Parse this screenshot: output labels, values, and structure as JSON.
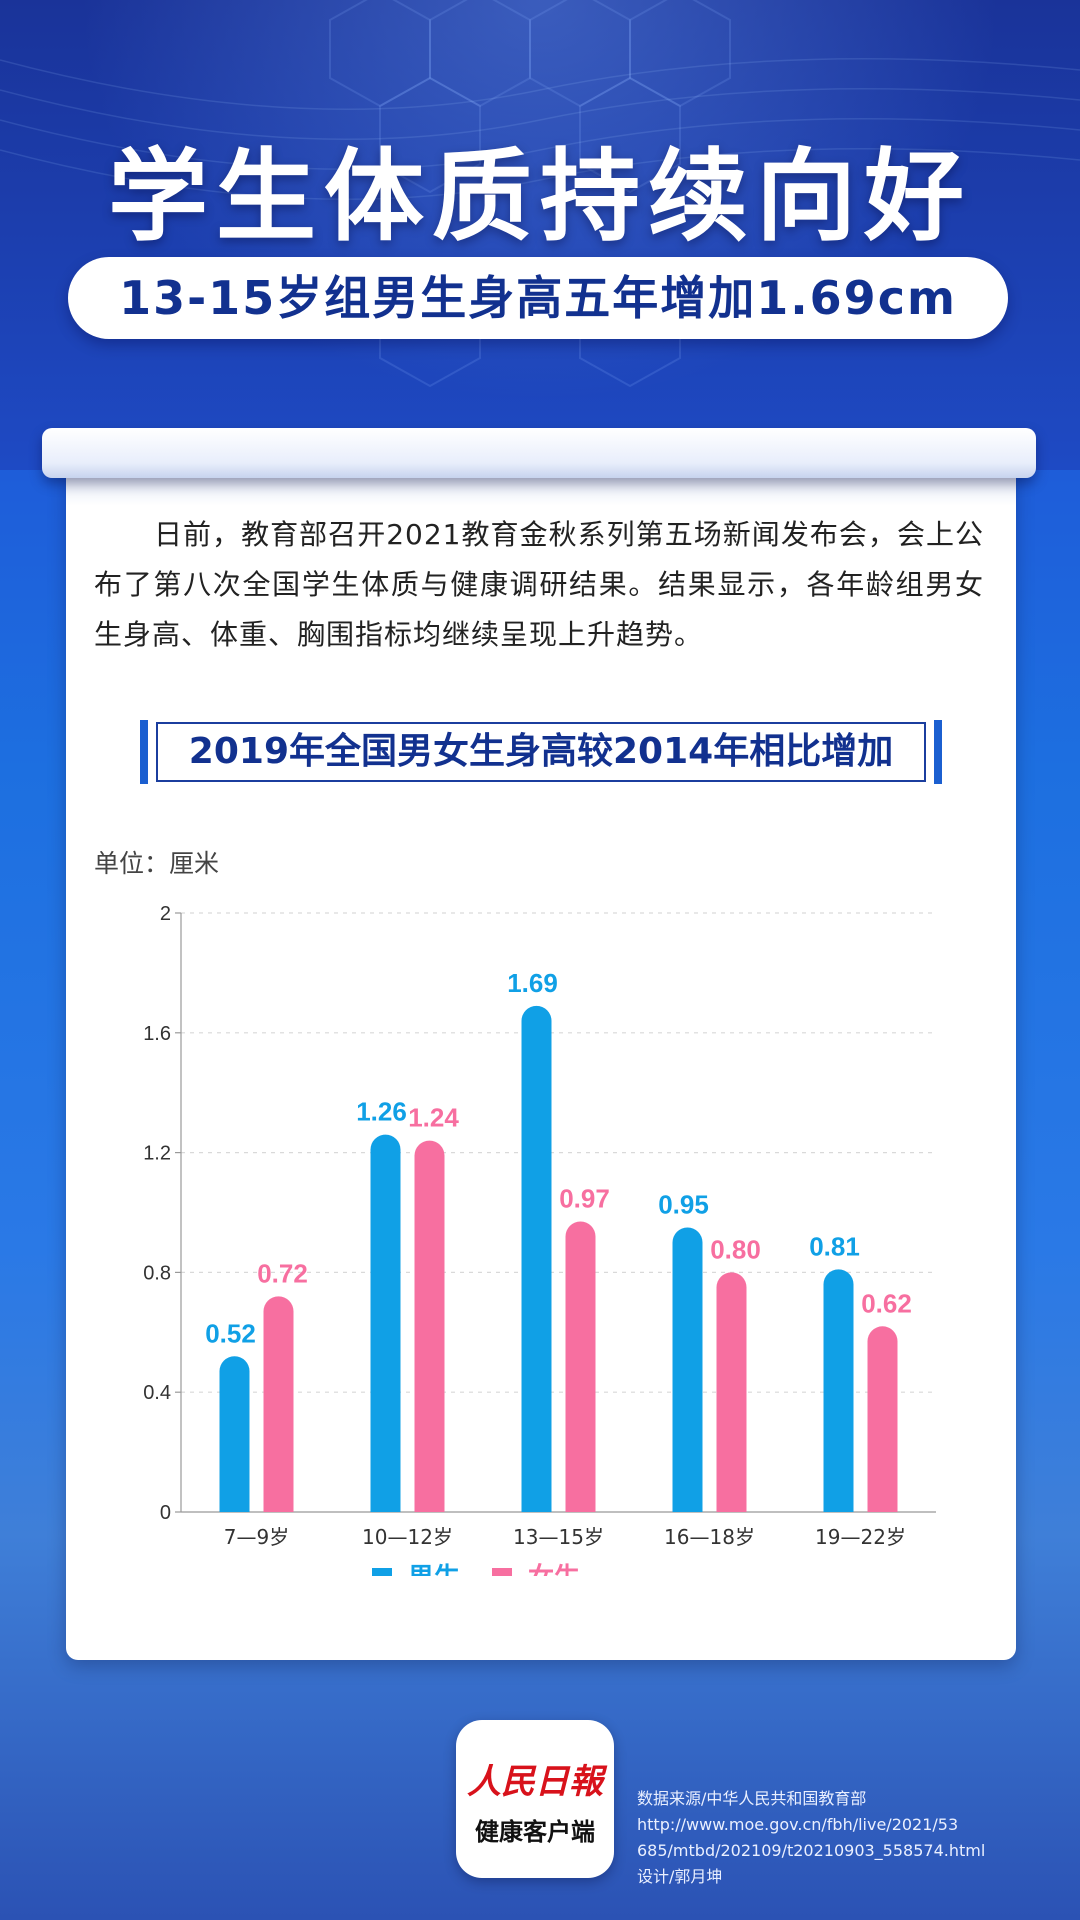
{
  "header": {
    "title": "学生体质持续向好",
    "subtitle": "13-15岁组男生身高五年增加1.69cm"
  },
  "intro": "日前，教育部召开2021教育金秋系列第五场新闻发布会，会上公布了第八次全国学生体质与健康调研结果。结果显示，各年龄组男女生身高、体重、胸围指标均继续呈现上升趋势。",
  "chart_data": {
    "type": "bar",
    "title": "2019年全国男女生身高较2014年相比增加",
    "unit_label": "单位：厘米",
    "categories": [
      "7—9岁",
      "10—12岁",
      "13—15岁",
      "16—18岁",
      "19—22岁"
    ],
    "series": [
      {
        "name": "男生",
        "color": "#10a0e6",
        "values": [
          0.52,
          1.26,
          1.69,
          0.95,
          0.81
        ]
      },
      {
        "name": "女生",
        "color": "#f76fa0",
        "values": [
          0.72,
          1.24,
          0.97,
          0.8,
          0.62
        ]
      }
    ],
    "value_labels": [
      [
        "0.52",
        "1.26",
        "1.69",
        "0.95",
        "0.81"
      ],
      [
        "0.72",
        "1.24",
        "0.97",
        "0.80",
        "0.62"
      ]
    ],
    "yticks": [
      "0",
      "0.4",
      "0.8",
      "1.2",
      "1.6",
      "2"
    ],
    "ylim": [
      0,
      2
    ],
    "grid": true,
    "legend": "bottom"
  },
  "footer": {
    "logo_main": "人民日報",
    "logo_sub": "健康客户端",
    "source_lines": [
      "数据来源/中华人民共和国教育部",
      "http://www.moe.gov.cn/fbh/live/2021/53",
      "685/mtbd/202109/t20210903_558574.html",
      "设计/郭月坤"
    ]
  }
}
